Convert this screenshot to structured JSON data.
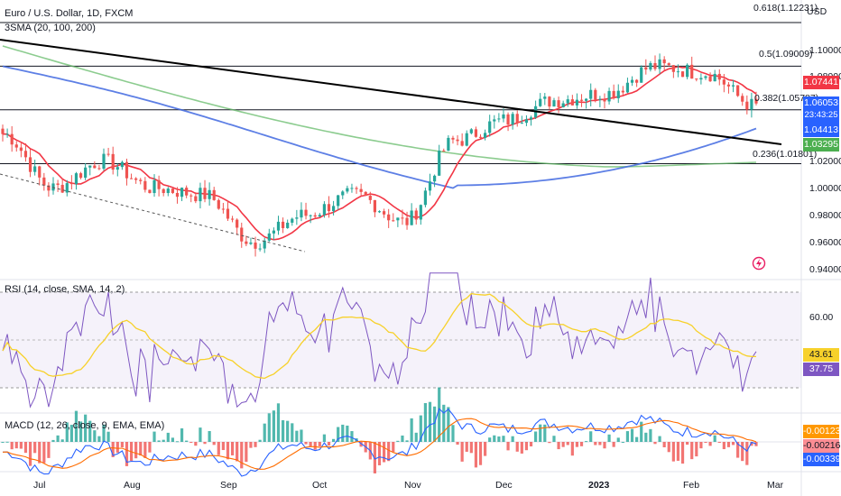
{
  "header": {
    "title": "Euro / U.S. Dollar, 1D, FXCM",
    "indicator_sma": "3SMA (20, 100, 200)",
    "currency": "USD"
  },
  "price_axis": {
    "ticks": [
      "1.10000",
      "1.08000",
      "1.06000",
      "1.04000",
      "1.02000",
      "1.00000",
      "0.98000",
      "0.96000",
      "0.94000"
    ]
  },
  "fib_levels": [
    {
      "label": "0.618(1.12231)"
    },
    {
      "label": "0.5(1.09009)"
    },
    {
      "label": "0.382(1.05787)"
    },
    {
      "label": "0.236(1.01801)"
    }
  ],
  "price_tags": {
    "red": {
      "text": "1.07441",
      "color": "#f23645"
    },
    "last": {
      "text": "1.06053",
      "sub": "23:43:25",
      "color": "#2962ff"
    },
    "blue": {
      "text": "1.04413",
      "color": "#2962ff"
    },
    "green": {
      "text": "1.03295",
      "color": "#4caf50"
    }
  },
  "rsi": {
    "title": "RSI (14, close, SMA, 14, 2)",
    "tick": "60.00",
    "tag_sma": {
      "text": "43.61",
      "color": "#f7d12a"
    },
    "tag_rsi": {
      "text": "37.75",
      "color": "#7e57c2"
    }
  },
  "macd": {
    "title": "MACD (12, 26, close, 9, EMA, EMA)",
    "tag_hist": {
      "text": "-0.00123",
      "color": "#ff9800"
    },
    "tag_signal": {
      "text": "-0.00216",
      "color": "#fc8d94"
    },
    "tag_macd": {
      "text": "-0.00339",
      "color": "#2962ff"
    }
  },
  "time_axis": [
    "Jul",
    "Aug",
    "Sep",
    "Oct",
    "Nov",
    "Dec",
    "2023",
    "Feb",
    "Mar"
  ],
  "chart_data": {
    "type": "candlestick",
    "title": "Euro / U.S. Dollar, 1D, FXCM",
    "price_range": [
      0.94,
      1.125
    ],
    "key_points": [
      {
        "date": "Jul",
        "close": 1.04
      },
      {
        "date": "Jul-mid",
        "close": 1.0
      },
      {
        "date": "Aug",
        "close": 1.02
      },
      {
        "date": "Aug-late",
        "close": 1.0
      },
      {
        "date": "Sep",
        "close": 0.995
      },
      {
        "date": "Sep-late",
        "close": 0.96
      },
      {
        "date": "Oct",
        "close": 0.98
      },
      {
        "date": "Oct-late",
        "close": 0.995
      },
      {
        "date": "Nov",
        "close": 0.975
      },
      {
        "date": "Nov-mid",
        "close": 1.035
      },
      {
        "date": "Dec",
        "close": 1.05
      },
      {
        "date": "Dec-late",
        "close": 1.065
      },
      {
        "date": "2023",
        "close": 1.07
      },
      {
        "date": "Jan-late",
        "close": 1.09
      },
      {
        "date": "Feb",
        "close": 1.085
      },
      {
        "date": "Feb-late",
        "close": 1.06053
      }
    ],
    "sma": [
      {
        "name": "SMA 20",
        "color": "#f23645",
        "last": 1.07441
      },
      {
        "name": "SMA 100",
        "color": "#2962ff",
        "last": 1.04413
      },
      {
        "name": "SMA 200",
        "color": "#4caf50",
        "last": 1.03295
      }
    ],
    "fib": [
      1.12231,
      1.09009,
      1.05787,
      1.01801
    ],
    "rsi_last": 37.75,
    "rsi_sma_last": 43.61,
    "macd_last": -0.00339,
    "signal_last": -0.00216,
    "hist_last": -0.00123
  },
  "colors": {
    "up": "#26a69a",
    "down": "#ef5350",
    "rsi": "#7e57c2",
    "rsi_sma": "#f7d12a",
    "macd": "#2962ff",
    "signal": "#ff6d00"
  }
}
